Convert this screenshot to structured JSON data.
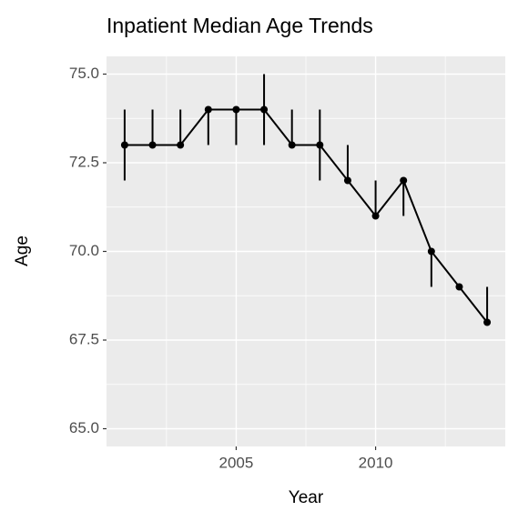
{
  "chart_data": {
    "type": "line",
    "title": "Inpatient Median Age Trends",
    "x_label": "Year",
    "y_label": "Age",
    "x": [
      2001,
      2002,
      2003,
      2004,
      2005,
      2006,
      2007,
      2008,
      2009,
      2010,
      2011,
      2012,
      2013,
      2014
    ],
    "series": [
      {
        "name": "Age",
        "color": "#000000",
        "values": [
          73,
          73,
          73,
          74,
          74,
          74,
          73,
          73,
          72,
          71,
          72,
          70,
          69,
          68
        ],
        "lower": [
          72,
          73,
          73,
          73,
          73,
          73,
          73,
          72,
          72,
          71,
          71,
          69,
          69,
          68
        ],
        "upper": [
          74,
          74,
          74,
          74,
          74,
          75,
          74,
          74,
          73,
          72,
          72,
          70,
          69,
          69
        ]
      }
    ],
    "xlim": [
      2000.35,
      2014.65
    ],
    "xticks": [
      2005,
      2010
    ],
    "ylim": [
      64.5,
      75.5
    ],
    "yticks": [
      {
        "value": 65,
        "label": "65.0"
      },
      {
        "value": 67.5,
        "label": "67.5"
      },
      {
        "value": 70,
        "label": "70.0"
      },
      {
        "value": 72.5,
        "label": "72.5"
      },
      {
        "value": 75,
        "label": "75.0"
      }
    ],
    "grid": true
  }
}
